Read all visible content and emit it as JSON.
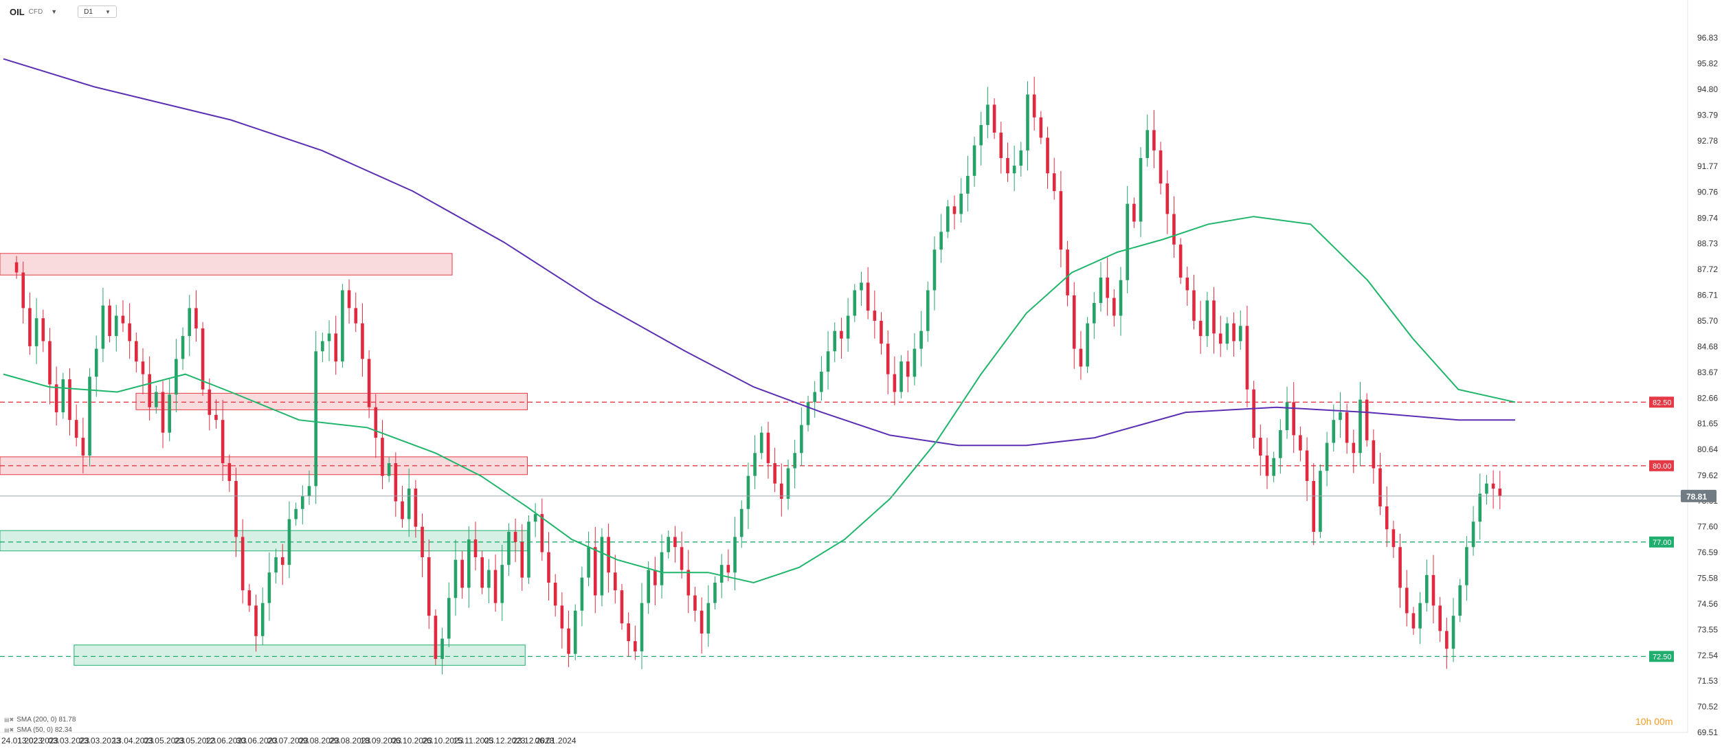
{
  "header": {
    "symbol": "OIL",
    "symbol_suffix": "CFD",
    "timeframe": "D1"
  },
  "legend": {
    "sma200": "SMA (200, 0) 81.78",
    "sma50": "SMA (50, 0) 82.34"
  },
  "countdown": "10h 00m",
  "colors": {
    "bull": "#26a269",
    "bear": "#e0283e",
    "sma200": "#5b2fb3",
    "sma50": "#1fb56a",
    "resistance": "#e53945",
    "support": "#1fae6e",
    "price_label": "#707b84"
  },
  "chart_data": {
    "type": "candlestick",
    "title": "",
    "ylim": [
      69.51,
      97.2
    ],
    "y_ticks": [
      "96.83",
      "95.82",
      "94.80",
      "93.79",
      "92.78",
      "91.77",
      "90.76",
      "89.74",
      "88.73",
      "87.72",
      "86.71",
      "85.70",
      "84.68",
      "83.67",
      "82.66",
      "81.65",
      "80.64",
      "79.62",
      "78.61",
      "77.60",
      "76.59",
      "75.58",
      "74.56",
      "73.55",
      "72.54",
      "71.53",
      "70.52",
      "69.51"
    ],
    "x_ticks": [
      "24.01.2023",
      "13.02.2023",
      "03.03.2023",
      "23.03.2023",
      "13.04.2023",
      "03.05.2023",
      "23.05.2023",
      "12.06.2023",
      "30.06.2023",
      "20.07.2023",
      "09.08.2023",
      "29.08.2023",
      "18.09.2023",
      "06.10.2023",
      "26.10.2023",
      "15.11.2023",
      "05.12.2023",
      "23.12.2023",
      "06.01.2024"
    ],
    "last_price": "78.81",
    "levels": [
      {
        "label": "82.50",
        "value": 82.5,
        "kind": "resistance"
      },
      {
        "label": "80.00",
        "value": 80.0,
        "kind": "resistance"
      },
      {
        "label": "77.00",
        "value": 77.0,
        "kind": "support"
      },
      {
        "label": "72.50",
        "value": 72.5,
        "kind": "support"
      }
    ],
    "zones": [
      {
        "from": 87.5,
        "to": 88.35,
        "start": "24.01.2023",
        "end": "31.10.2023",
        "kind": "resistance"
      },
      {
        "from": 82.2,
        "to": 82.85,
        "start": "17.04.2023",
        "end": "18.12.2023",
        "kind": "resistance"
      },
      {
        "from": 79.65,
        "to": 80.35,
        "start": "24.01.2023",
        "end": "18.12.2023",
        "kind": "resistance"
      },
      {
        "from": 76.65,
        "to": 77.45,
        "start": "24.01.2023",
        "end": "18.12.2023",
        "kind": "support"
      },
      {
        "from": 72.15,
        "to": 72.95,
        "start": "08.03.2023",
        "end": "15.12.2023",
        "kind": "support"
      }
    ],
    "series": [
      {
        "name": "SMA (200, 0)",
        "values": [
          [
            0,
            96.0
          ],
          [
            40,
            94.9
          ],
          [
            100,
            93.6
          ],
          [
            140,
            92.4
          ],
          [
            180,
            90.8
          ],
          [
            220,
            88.8
          ],
          [
            260,
            86.5
          ],
          [
            300,
            84.5
          ],
          [
            330,
            83.1
          ],
          [
            360,
            82.1
          ],
          [
            390,
            81.2
          ],
          [
            420,
            80.8
          ],
          [
            450,
            80.8
          ],
          [
            480,
            81.1
          ],
          [
            500,
            81.6
          ],
          [
            520,
            82.1
          ],
          [
            560,
            82.3
          ],
          [
            600,
            82.1
          ],
          [
            640,
            81.8
          ],
          [
            665,
            81.8
          ]
        ]
      },
      {
        "name": "SMA (50, 0)",
        "values": [
          [
            0,
            83.6
          ],
          [
            20,
            83.1
          ],
          [
            50,
            82.9
          ],
          [
            80,
            83.6
          ],
          [
            100,
            82.9
          ],
          [
            130,
            81.8
          ],
          [
            160,
            81.5
          ],
          [
            190,
            80.5
          ],
          [
            210,
            79.6
          ],
          [
            230,
            78.4
          ],
          [
            250,
            77.1
          ],
          [
            270,
            76.3
          ],
          [
            290,
            75.8
          ],
          [
            310,
            75.8
          ],
          [
            330,
            75.4
          ],
          [
            350,
            76.0
          ],
          [
            370,
            77.1
          ],
          [
            390,
            78.7
          ],
          [
            410,
            80.9
          ],
          [
            430,
            83.6
          ],
          [
            450,
            86.0
          ],
          [
            470,
            87.6
          ],
          [
            490,
            88.4
          ],
          [
            510,
            88.9
          ],
          [
            530,
            89.5
          ],
          [
            550,
            89.8
          ],
          [
            575,
            89.5
          ],
          [
            600,
            87.3
          ],
          [
            620,
            85.0
          ],
          [
            640,
            83.0
          ],
          [
            665,
            82.5
          ]
        ]
      }
    ],
    "annotations": []
  }
}
